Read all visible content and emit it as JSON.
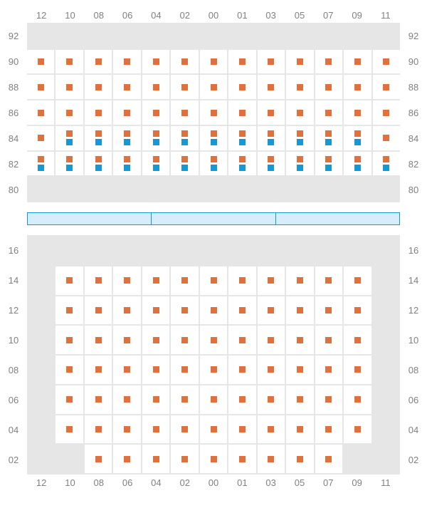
{
  "colors": {
    "background": "#ffffff",
    "grid_bg": "#e6e6e6",
    "cell_filled": "#ffffff",
    "marker_orange": "#e0703c",
    "marker_blue": "#1599d6",
    "label_text": "#808080",
    "separator_fill": "#d6eefc",
    "separator_border": "#1599d6"
  },
  "columns": [
    "12",
    "10",
    "08",
    "06",
    "04",
    "02",
    "00",
    "01",
    "03",
    "05",
    "07",
    "09",
    "11"
  ],
  "top": {
    "row_labels": [
      "92",
      "90",
      "88",
      "86",
      "84",
      "82",
      "80"
    ],
    "rows": [
      {
        "label": "92",
        "cells": [
          {
            "f": 0,
            "m": []
          },
          {
            "f": 0,
            "m": []
          },
          {
            "f": 0,
            "m": []
          },
          {
            "f": 0,
            "m": []
          },
          {
            "f": 0,
            "m": []
          },
          {
            "f": 0,
            "m": []
          },
          {
            "f": 0,
            "m": []
          },
          {
            "f": 0,
            "m": []
          },
          {
            "f": 0,
            "m": []
          },
          {
            "f": 0,
            "m": []
          },
          {
            "f": 0,
            "m": []
          },
          {
            "f": 0,
            "m": []
          },
          {
            "f": 0,
            "m": []
          }
        ]
      },
      {
        "label": "90",
        "cells": [
          {
            "f": 1,
            "m": [
              "o"
            ]
          },
          {
            "f": 1,
            "m": [
              "o"
            ]
          },
          {
            "f": 1,
            "m": [
              "o"
            ]
          },
          {
            "f": 1,
            "m": [
              "o"
            ]
          },
          {
            "f": 1,
            "m": [
              "o"
            ]
          },
          {
            "f": 1,
            "m": [
              "o"
            ]
          },
          {
            "f": 1,
            "m": [
              "o"
            ]
          },
          {
            "f": 1,
            "m": [
              "o"
            ]
          },
          {
            "f": 1,
            "m": [
              "o"
            ]
          },
          {
            "f": 1,
            "m": [
              "o"
            ]
          },
          {
            "f": 1,
            "m": [
              "o"
            ]
          },
          {
            "f": 1,
            "m": [
              "o"
            ]
          },
          {
            "f": 1,
            "m": [
              "o"
            ]
          }
        ]
      },
      {
        "label": "88",
        "cells": [
          {
            "f": 1,
            "m": [
              "o"
            ]
          },
          {
            "f": 1,
            "m": [
              "o"
            ]
          },
          {
            "f": 1,
            "m": [
              "o"
            ]
          },
          {
            "f": 1,
            "m": [
              "o"
            ]
          },
          {
            "f": 1,
            "m": [
              "o"
            ]
          },
          {
            "f": 1,
            "m": [
              "o"
            ]
          },
          {
            "f": 1,
            "m": [
              "o"
            ]
          },
          {
            "f": 1,
            "m": [
              "o"
            ]
          },
          {
            "f": 1,
            "m": [
              "o"
            ]
          },
          {
            "f": 1,
            "m": [
              "o"
            ]
          },
          {
            "f": 1,
            "m": [
              "o"
            ]
          },
          {
            "f": 1,
            "m": [
              "o"
            ]
          },
          {
            "f": 1,
            "m": [
              "o"
            ]
          }
        ]
      },
      {
        "label": "86",
        "cells": [
          {
            "f": 1,
            "m": [
              "o"
            ]
          },
          {
            "f": 1,
            "m": [
              "o"
            ]
          },
          {
            "f": 1,
            "m": [
              "o"
            ]
          },
          {
            "f": 1,
            "m": [
              "o"
            ]
          },
          {
            "f": 1,
            "m": [
              "o"
            ]
          },
          {
            "f": 1,
            "m": [
              "o"
            ]
          },
          {
            "f": 1,
            "m": [
              "o"
            ]
          },
          {
            "f": 1,
            "m": [
              "o"
            ]
          },
          {
            "f": 1,
            "m": [
              "o"
            ]
          },
          {
            "f": 1,
            "m": [
              "o"
            ]
          },
          {
            "f": 1,
            "m": [
              "o"
            ]
          },
          {
            "f": 1,
            "m": [
              "o"
            ]
          },
          {
            "f": 1,
            "m": [
              "o"
            ]
          }
        ]
      },
      {
        "label": "84",
        "cells": [
          {
            "f": 1,
            "m": [
              "o"
            ]
          },
          {
            "f": 1,
            "m": [
              "o",
              "b"
            ]
          },
          {
            "f": 1,
            "m": [
              "o",
              "b"
            ]
          },
          {
            "f": 1,
            "m": [
              "o",
              "b"
            ]
          },
          {
            "f": 1,
            "m": [
              "o",
              "b"
            ]
          },
          {
            "f": 1,
            "m": [
              "o",
              "b"
            ]
          },
          {
            "f": 1,
            "m": [
              "o",
              "b"
            ]
          },
          {
            "f": 1,
            "m": [
              "o",
              "b"
            ]
          },
          {
            "f": 1,
            "m": [
              "o",
              "b"
            ]
          },
          {
            "f": 1,
            "m": [
              "o",
              "b"
            ]
          },
          {
            "f": 1,
            "m": [
              "o",
              "b"
            ]
          },
          {
            "f": 1,
            "m": [
              "o",
              "b"
            ]
          },
          {
            "f": 1,
            "m": [
              "o"
            ]
          }
        ]
      },
      {
        "label": "82",
        "cells": [
          {
            "f": 1,
            "m": [
              "o",
              "b"
            ]
          },
          {
            "f": 1,
            "m": [
              "o",
              "b"
            ]
          },
          {
            "f": 1,
            "m": [
              "o",
              "b"
            ]
          },
          {
            "f": 1,
            "m": [
              "o",
              "b"
            ]
          },
          {
            "f": 1,
            "m": [
              "o",
              "b"
            ]
          },
          {
            "f": 1,
            "m": [
              "o",
              "b"
            ]
          },
          {
            "f": 1,
            "m": [
              "o",
              "b"
            ]
          },
          {
            "f": 1,
            "m": [
              "o",
              "b"
            ]
          },
          {
            "f": 1,
            "m": [
              "o",
              "b"
            ]
          },
          {
            "f": 1,
            "m": [
              "o",
              "b"
            ]
          },
          {
            "f": 1,
            "m": [
              "o",
              "b"
            ]
          },
          {
            "f": 1,
            "m": [
              "o",
              "b"
            ]
          },
          {
            "f": 1,
            "m": [
              "o",
              "b"
            ]
          }
        ]
      },
      {
        "label": "80",
        "cells": [
          {
            "f": 0,
            "m": []
          },
          {
            "f": 0,
            "m": []
          },
          {
            "f": 0,
            "m": []
          },
          {
            "f": 0,
            "m": []
          },
          {
            "f": 0,
            "m": []
          },
          {
            "f": 0,
            "m": []
          },
          {
            "f": 0,
            "m": []
          },
          {
            "f": 0,
            "m": []
          },
          {
            "f": 0,
            "m": []
          },
          {
            "f": 0,
            "m": []
          },
          {
            "f": 0,
            "m": []
          },
          {
            "f": 0,
            "m": []
          },
          {
            "f": 0,
            "m": []
          }
        ]
      }
    ]
  },
  "separator": {
    "segments": 3
  },
  "bottom": {
    "row_labels": [
      "16",
      "14",
      "12",
      "10",
      "08",
      "06",
      "04",
      "02"
    ],
    "rows": [
      {
        "label": "16",
        "cells": [
          {
            "f": 0,
            "m": []
          },
          {
            "f": 0,
            "m": []
          },
          {
            "f": 0,
            "m": []
          },
          {
            "f": 0,
            "m": []
          },
          {
            "f": 0,
            "m": []
          },
          {
            "f": 0,
            "m": []
          },
          {
            "f": 0,
            "m": []
          },
          {
            "f": 0,
            "m": []
          },
          {
            "f": 0,
            "m": []
          },
          {
            "f": 0,
            "m": []
          },
          {
            "f": 0,
            "m": []
          },
          {
            "f": 0,
            "m": []
          },
          {
            "f": 0,
            "m": []
          }
        ]
      },
      {
        "label": "14",
        "cells": [
          {
            "f": 0,
            "m": []
          },
          {
            "f": 1,
            "m": [
              "o"
            ]
          },
          {
            "f": 1,
            "m": [
              "o"
            ]
          },
          {
            "f": 1,
            "m": [
              "o"
            ]
          },
          {
            "f": 1,
            "m": [
              "o"
            ]
          },
          {
            "f": 1,
            "m": [
              "o"
            ]
          },
          {
            "f": 1,
            "m": [
              "o"
            ]
          },
          {
            "f": 1,
            "m": [
              "o"
            ]
          },
          {
            "f": 1,
            "m": [
              "o"
            ]
          },
          {
            "f": 1,
            "m": [
              "o"
            ]
          },
          {
            "f": 1,
            "m": [
              "o"
            ]
          },
          {
            "f": 1,
            "m": [
              "o"
            ]
          },
          {
            "f": 0,
            "m": []
          }
        ]
      },
      {
        "label": "12",
        "cells": [
          {
            "f": 0,
            "m": []
          },
          {
            "f": 1,
            "m": [
              "o"
            ]
          },
          {
            "f": 1,
            "m": [
              "o"
            ]
          },
          {
            "f": 1,
            "m": [
              "o"
            ]
          },
          {
            "f": 1,
            "m": [
              "o"
            ]
          },
          {
            "f": 1,
            "m": [
              "o"
            ]
          },
          {
            "f": 1,
            "m": [
              "o"
            ]
          },
          {
            "f": 1,
            "m": [
              "o"
            ]
          },
          {
            "f": 1,
            "m": [
              "o"
            ]
          },
          {
            "f": 1,
            "m": [
              "o"
            ]
          },
          {
            "f": 1,
            "m": [
              "o"
            ]
          },
          {
            "f": 1,
            "m": [
              "o"
            ]
          },
          {
            "f": 0,
            "m": []
          }
        ]
      },
      {
        "label": "10",
        "cells": [
          {
            "f": 0,
            "m": []
          },
          {
            "f": 1,
            "m": [
              "o"
            ]
          },
          {
            "f": 1,
            "m": [
              "o"
            ]
          },
          {
            "f": 1,
            "m": [
              "o"
            ]
          },
          {
            "f": 1,
            "m": [
              "o"
            ]
          },
          {
            "f": 1,
            "m": [
              "o"
            ]
          },
          {
            "f": 1,
            "m": [
              "o"
            ]
          },
          {
            "f": 1,
            "m": [
              "o"
            ]
          },
          {
            "f": 1,
            "m": [
              "o"
            ]
          },
          {
            "f": 1,
            "m": [
              "o"
            ]
          },
          {
            "f": 1,
            "m": [
              "o"
            ]
          },
          {
            "f": 1,
            "m": [
              "o"
            ]
          },
          {
            "f": 0,
            "m": []
          }
        ]
      },
      {
        "label": "08",
        "cells": [
          {
            "f": 0,
            "m": []
          },
          {
            "f": 1,
            "m": [
              "o"
            ]
          },
          {
            "f": 1,
            "m": [
              "o"
            ]
          },
          {
            "f": 1,
            "m": [
              "o"
            ]
          },
          {
            "f": 1,
            "m": [
              "o"
            ]
          },
          {
            "f": 1,
            "m": [
              "o"
            ]
          },
          {
            "f": 1,
            "m": [
              "o"
            ]
          },
          {
            "f": 1,
            "m": [
              "o"
            ]
          },
          {
            "f": 1,
            "m": [
              "o"
            ]
          },
          {
            "f": 1,
            "m": [
              "o"
            ]
          },
          {
            "f": 1,
            "m": [
              "o"
            ]
          },
          {
            "f": 1,
            "m": [
              "o"
            ]
          },
          {
            "f": 0,
            "m": []
          }
        ]
      },
      {
        "label": "06",
        "cells": [
          {
            "f": 0,
            "m": []
          },
          {
            "f": 1,
            "m": [
              "o"
            ]
          },
          {
            "f": 1,
            "m": [
              "o"
            ]
          },
          {
            "f": 1,
            "m": [
              "o"
            ]
          },
          {
            "f": 1,
            "m": [
              "o"
            ]
          },
          {
            "f": 1,
            "m": [
              "o"
            ]
          },
          {
            "f": 1,
            "m": [
              "o"
            ]
          },
          {
            "f": 1,
            "m": [
              "o"
            ]
          },
          {
            "f": 1,
            "m": [
              "o"
            ]
          },
          {
            "f": 1,
            "m": [
              "o"
            ]
          },
          {
            "f": 1,
            "m": [
              "o"
            ]
          },
          {
            "f": 1,
            "m": [
              "o"
            ]
          },
          {
            "f": 0,
            "m": []
          }
        ]
      },
      {
        "label": "04",
        "cells": [
          {
            "f": 0,
            "m": []
          },
          {
            "f": 1,
            "m": [
              "o"
            ]
          },
          {
            "f": 1,
            "m": [
              "o"
            ]
          },
          {
            "f": 1,
            "m": [
              "o"
            ]
          },
          {
            "f": 1,
            "m": [
              "o"
            ]
          },
          {
            "f": 1,
            "m": [
              "o"
            ]
          },
          {
            "f": 1,
            "m": [
              "o"
            ]
          },
          {
            "f": 1,
            "m": [
              "o"
            ]
          },
          {
            "f": 1,
            "m": [
              "o"
            ]
          },
          {
            "f": 1,
            "m": [
              "o"
            ]
          },
          {
            "f": 1,
            "m": [
              "o"
            ]
          },
          {
            "f": 1,
            "m": [
              "o"
            ]
          },
          {
            "f": 0,
            "m": []
          }
        ]
      },
      {
        "label": "02",
        "cells": [
          {
            "f": 0,
            "m": []
          },
          {
            "f": 0,
            "m": []
          },
          {
            "f": 1,
            "m": [
              "o"
            ]
          },
          {
            "f": 1,
            "m": [
              "o"
            ]
          },
          {
            "f": 1,
            "m": [
              "o"
            ]
          },
          {
            "f": 1,
            "m": [
              "o"
            ]
          },
          {
            "f": 1,
            "m": [
              "o"
            ]
          },
          {
            "f": 1,
            "m": [
              "o"
            ]
          },
          {
            "f": 1,
            "m": [
              "o"
            ]
          },
          {
            "f": 1,
            "m": [
              "o"
            ]
          },
          {
            "f": 1,
            "m": [
              "o"
            ]
          },
          {
            "f": 0,
            "m": []
          },
          {
            "f": 0,
            "m": []
          }
        ]
      }
    ]
  }
}
